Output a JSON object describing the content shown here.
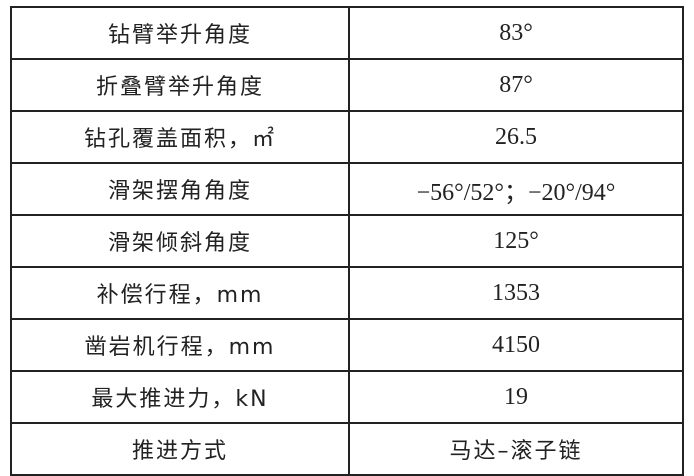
{
  "rows": [
    {
      "param": "钻臂举升角度",
      "value": "83°"
    },
    {
      "param": "折叠臂举升角度",
      "value": "87°"
    },
    {
      "param": "钻孔覆盖面积，㎡",
      "value": "26.5"
    },
    {
      "param": "滑架摆角角度",
      "value": "−56°/52°；−20°/94°"
    },
    {
      "param": "滑架倾斜角度",
      "value": "125°"
    },
    {
      "param": "补偿行程，mm",
      "value": "1353"
    },
    {
      "param": "凿岩机行程，mm",
      "value": "4150"
    },
    {
      "param": "最大推进力，kN",
      "value": "19"
    },
    {
      "param": "推进方式",
      "value": "马达–滚子链"
    }
  ]
}
